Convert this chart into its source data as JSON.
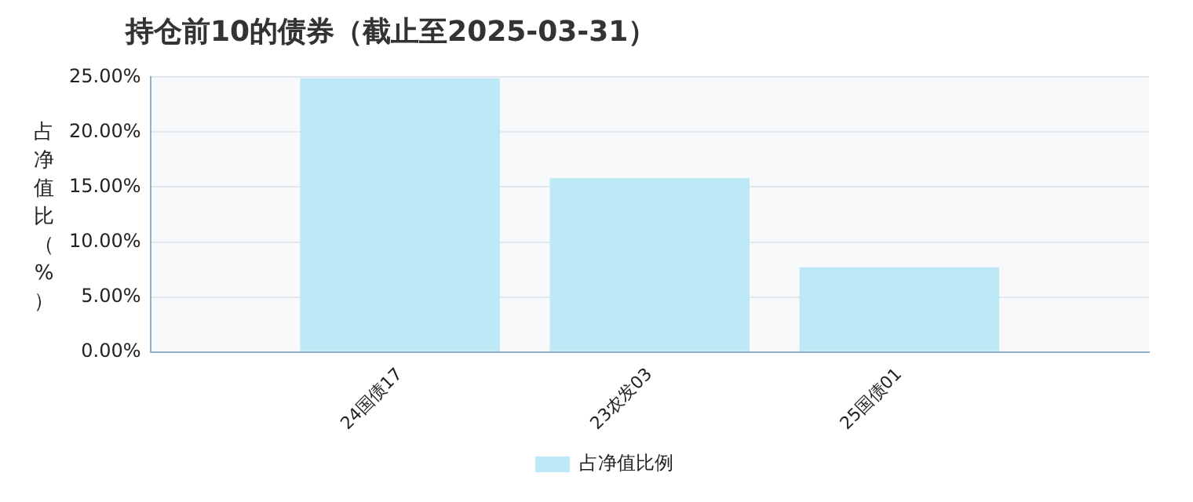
{
  "chart_data": {
    "type": "bar",
    "title": "持仓前10的债券（截止至2025-03-31）",
    "ylabel": "占净值比（%）",
    "categories": [
      null,
      "24国债17",
      "23农发03",
      "25国债01",
      null
    ],
    "series": [
      {
        "name": "占净值比例",
        "color": "#bde8f5",
        "values": [
          null,
          24.9,
          15.8,
          7.7,
          null
        ]
      }
    ],
    "ylim": [
      0,
      25
    ],
    "yticks": [
      {
        "value": 0,
        "label": "0.00%"
      },
      {
        "value": 5,
        "label": "5.00%"
      },
      {
        "value": 10,
        "label": "10.00%"
      },
      {
        "value": 15,
        "label": "15.00%"
      },
      {
        "value": 20,
        "label": "20.00%"
      },
      {
        "value": 25,
        "label": "25.00%"
      }
    ],
    "grid": "y",
    "legend": "bottom"
  }
}
